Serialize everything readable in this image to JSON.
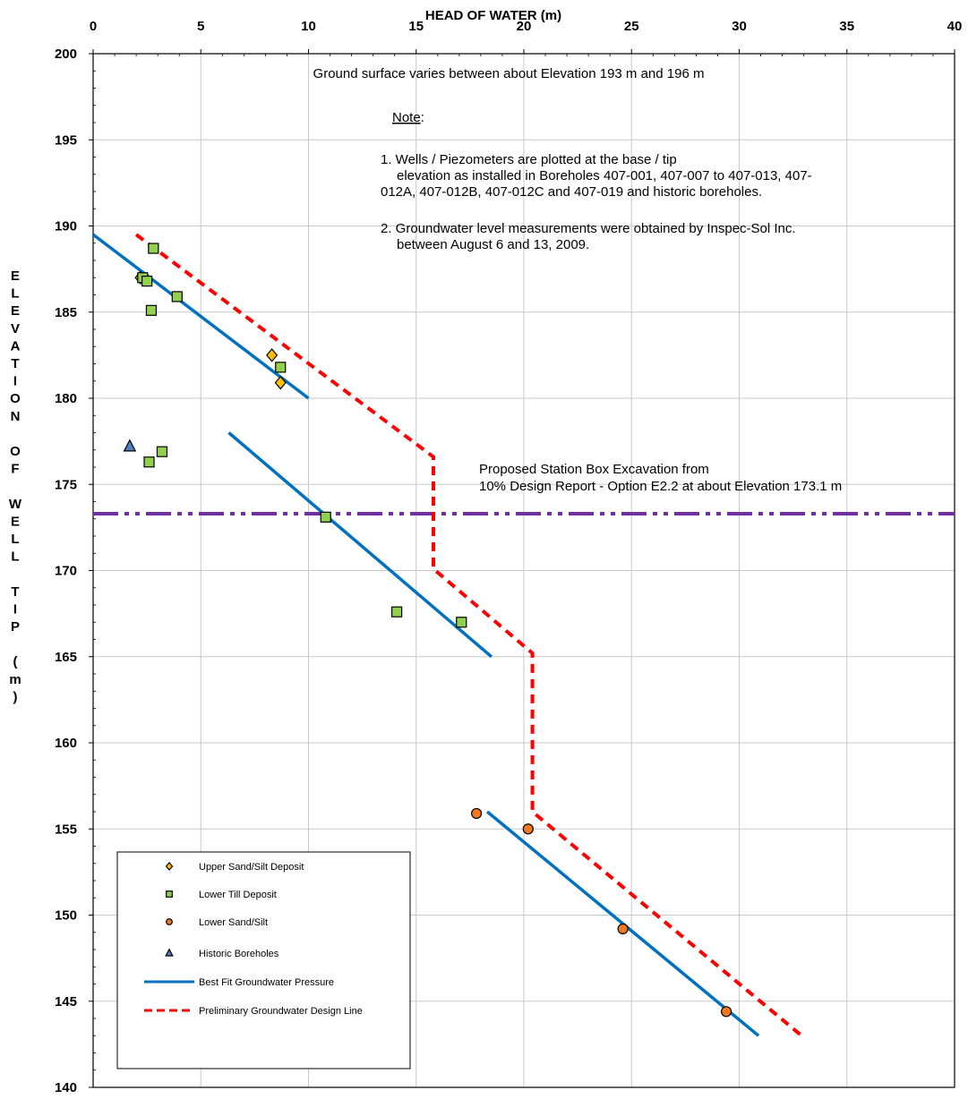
{
  "chart_data": {
    "type": "scatter",
    "title": "",
    "xlabel": "HEAD OF WATER (m)",
    "ylabel": "ELEVATION OF WELL TIP (m)",
    "xlim": [
      0,
      40
    ],
    "ylim": [
      140,
      200
    ],
    "x_ticks": [
      "0",
      "5",
      "10",
      "15",
      "20",
      "25",
      "30",
      "35",
      "40"
    ],
    "y_ticks": [
      "140",
      "145",
      "150",
      "155",
      "160",
      "165",
      "170",
      "175",
      "180",
      "185",
      "190",
      "195",
      "200"
    ],
    "x_axis_position": "top",
    "grid": true,
    "legend_position": "bottom-left",
    "series": [
      {
        "name": "Upper Sand/Silt Deposit",
        "kind": "points",
        "marker": "diamond",
        "color": "#FFC000",
        "points": [
          [
            2.2,
            187.0
          ],
          [
            8.3,
            182.5
          ],
          [
            8.7,
            180.9
          ]
        ]
      },
      {
        "name": "Lower Till Deposit",
        "kind": "points",
        "marker": "square",
        "color": "#92D050",
        "points": [
          [
            2.8,
            188.7
          ],
          [
            2.3,
            187.0
          ],
          [
            2.5,
            186.8
          ],
          [
            3.9,
            185.9
          ],
          [
            2.7,
            185.1
          ],
          [
            8.7,
            181.8
          ],
          [
            2.6,
            176.3
          ],
          [
            3.2,
            176.9
          ],
          [
            10.8,
            173.1
          ],
          [
            14.1,
            167.6
          ],
          [
            17.1,
            167.0
          ]
        ]
      },
      {
        "name": "Lower Sand/Silt",
        "kind": "points",
        "marker": "circle",
        "color": "#F07820",
        "points": [
          [
            17.8,
            155.9
          ],
          [
            20.2,
            155.0
          ],
          [
            24.6,
            149.2
          ],
          [
            29.4,
            144.4
          ]
        ]
      },
      {
        "name": "Historic Boreholes",
        "kind": "points",
        "marker": "triangle",
        "color": "#4F81BD",
        "points": [
          [
            1.7,
            177.2
          ]
        ]
      },
      {
        "name": "Best Fit Groundwater Pressure",
        "kind": "line",
        "color": "#0070C0",
        "segments": [
          [
            [
              0,
              189.5
            ],
            [
              10,
              180
            ]
          ],
          [
            [
              6.3,
              178
            ],
            [
              18.5,
              165
            ]
          ],
          [
            [
              18.3,
              156
            ],
            [
              30.9,
              143
            ]
          ]
        ]
      },
      {
        "name": "Preliminary Groundwater Design Line",
        "kind": "dashed-line",
        "color": "#FF0000",
        "segments": [
          [
            [
              2.0,
              189.5
            ],
            [
              15.8,
              176.6
            ],
            [
              15.8,
              170.1
            ],
            [
              20.4,
              165.2
            ],
            [
              20.4,
              156.0
            ],
            [
              32.9,
              143.0
            ]
          ]
        ]
      }
    ],
    "reference_line": {
      "y": 173.3,
      "style": "dash-dot-dot",
      "color": "#7030A0"
    },
    "annotations": {
      "ground_surface": "Ground surface varies between about Elevation 193 m and 196 m",
      "note_heading": "Note",
      "note_colon": ":",
      "note1_line1": "1. Wells / Piezometers are plotted at the base / tip",
      "note1_line2": "elevation as installed in Boreholes 407-001, 407-007 to 407-013, 407-",
      "note1_line3": "012A, 407-012B, 407-012C and 407-019 and historic boreholes.",
      "note2_line1": "2. Groundwater level measurements were obtained by Inspec-Sol Inc.",
      "note2_line2": "between August 6 and 13, 2009.",
      "station_line1": "Proposed Station Box Excavation from",
      "station_line2": "10% Design Report - Option E2.2 at about Elevation 173.1 m"
    }
  }
}
